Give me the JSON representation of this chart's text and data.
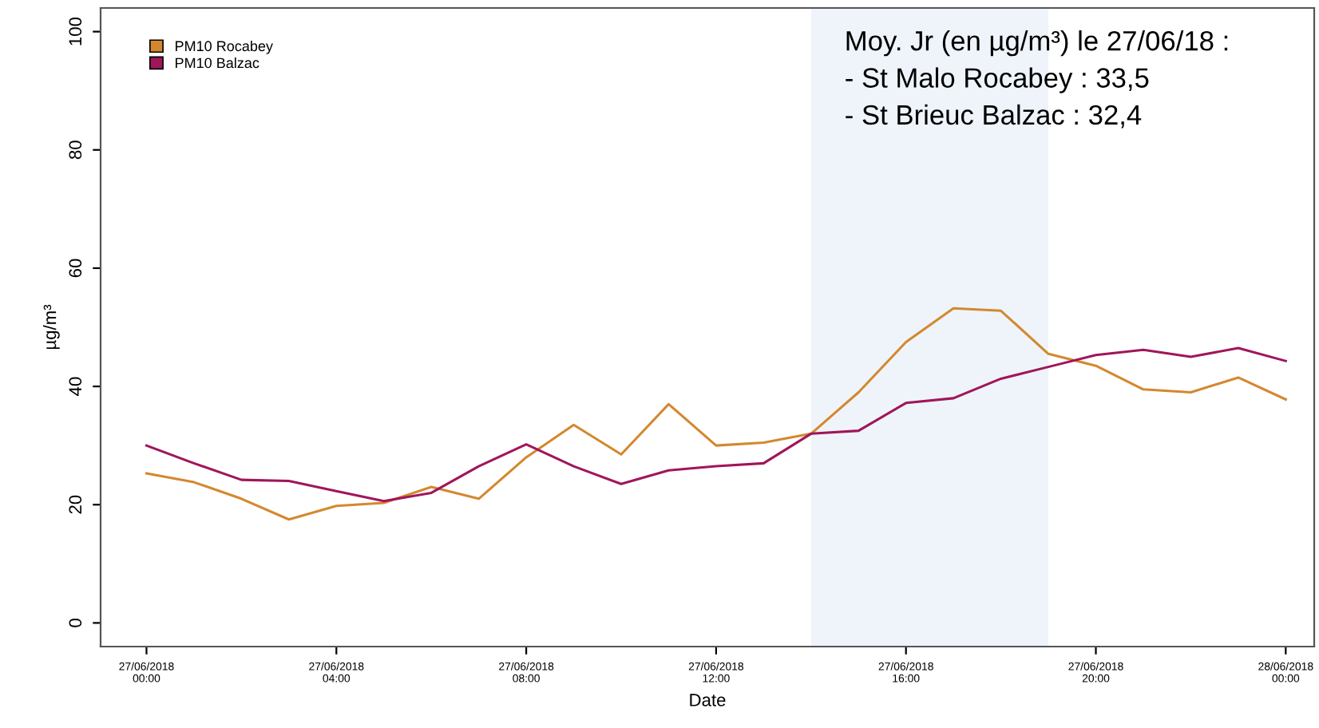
{
  "chart_data": {
    "type": "line",
    "xlabel": "Date",
    "ylabel": "µg/m³",
    "x": [
      "2018-06-27T00:00",
      "2018-06-27T01:00",
      "2018-06-27T02:00",
      "2018-06-27T03:00",
      "2018-06-27T04:00",
      "2018-06-27T05:00",
      "2018-06-27T06:00",
      "2018-06-27T07:00",
      "2018-06-27T08:00",
      "2018-06-27T09:00",
      "2018-06-27T10:00",
      "2018-06-27T11:00",
      "2018-06-27T12:00",
      "2018-06-27T13:00",
      "2018-06-27T14:00",
      "2018-06-27T15:00",
      "2018-06-27T16:00",
      "2018-06-27T17:00",
      "2018-06-27T18:00",
      "2018-06-27T19:00",
      "2018-06-27T20:00",
      "2018-06-27T21:00",
      "2018-06-27T22:00",
      "2018-06-27T23:00",
      "2018-06-28T00:00"
    ],
    "series": [
      {
        "name": "PM10 Rocabey",
        "color": "#d4882e",
        "values": [
          25.3,
          23.8,
          21,
          17.5,
          19.8,
          20.3,
          23,
          21,
          28,
          33.5,
          28.5,
          37,
          30,
          30.5,
          32,
          39,
          47.5,
          53.2,
          52.8,
          45.5,
          43.5,
          39.5,
          39,
          41.5,
          37.8
        ]
      },
      {
        "name": "PM10 Balzac",
        "color": "#a0165a",
        "values": [
          30,
          27,
          24.2,
          24,
          22.3,
          20.6,
          22,
          26.5,
          30.2,
          26.5,
          23.5,
          25.8,
          26.5,
          27,
          32,
          32.5,
          37.2,
          38,
          41.3,
          43.3,
          45.3,
          46.2,
          45,
          46.5,
          44.3
        ]
      }
    ],
    "xlim": [
      "2018-06-26T23:02",
      "2018-06-28T00:36"
    ],
    "ylim": [
      -4,
      104
    ],
    "xticks": [
      {
        "value": "2018-06-27T00:00",
        "label": "27/06/2018\n00:00"
      },
      {
        "value": "2018-06-27T04:00",
        "label": "27/06/2018\n04:00"
      },
      {
        "value": "2018-06-27T08:00",
        "label": "27/06/2018\n08:00"
      },
      {
        "value": "2018-06-27T12:00",
        "label": "27/06/2018\n12:00"
      },
      {
        "value": "2018-06-27T16:00",
        "label": "27/06/2018\n16:00"
      },
      {
        "value": "2018-06-27T20:00",
        "label": "27/06/2018\n20:00"
      },
      {
        "value": "2018-06-28T00:00",
        "label": "28/06/2018\n00:00"
      }
    ],
    "yticks": [
      0,
      20,
      40,
      60,
      80,
      100
    ],
    "bands": [
      {
        "axis": "x",
        "from": "2018-06-27T14:00",
        "to": "2018-06-27T19:00",
        "color": "#eef4fa"
      }
    ],
    "annotations": [
      "Moy. Jr (en µg/m³) le 27/06/18 :",
      "- St Malo Rocabey : 33,5",
      "- St Brieuc Balzac : 32,4"
    ],
    "grid": false,
    "legend": "top left",
    "marker": "none",
    "line_style": "solid"
  }
}
